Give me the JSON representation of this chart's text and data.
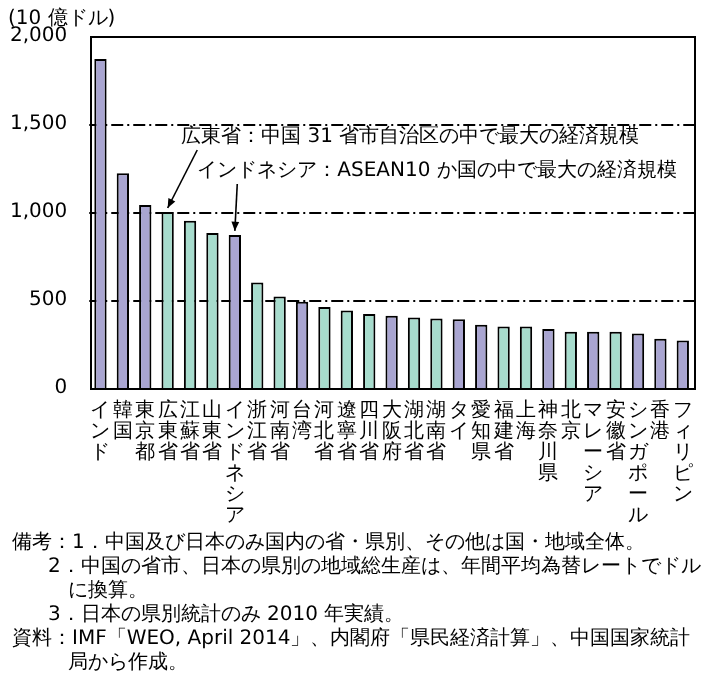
{
  "chart_data": {
    "type": "bar",
    "ylabel": "(10 億ドル)",
    "categories": [
      "インド",
      "韓国",
      "東京都",
      "広東省",
      "江蘇省",
      "山東省",
      "インドネシア",
      "浙江省",
      "河南省",
      "台湾",
      "河北省",
      "遼寧省",
      "四川省",
      "大阪府",
      "湖北省",
      "湖南省",
      "タイ",
      "愛知県",
      "福建省",
      "上海",
      "神奈川県",
      "北京",
      "マレーシア",
      "安徽省",
      "シンガポール",
      "香港",
      "フィリピン"
    ],
    "values": [
      1870,
      1220,
      1040,
      1000,
      950,
      880,
      870,
      600,
      520,
      490,
      460,
      440,
      420,
      410,
      400,
      395,
      390,
      360,
      350,
      350,
      335,
      320,
      320,
      320,
      310,
      280,
      270
    ],
    "colors": [
      "#a9a5d1",
      "#a9a5d1",
      "#a9a5d1",
      "#a7dccd",
      "#a7dccd",
      "#a7dccd",
      "#a9a5d1",
      "#a7dccd",
      "#a7dccd",
      "#a9a5d1",
      "#a7dccd",
      "#a7dccd",
      "#a7dccd",
      "#a9a5d1",
      "#a7dccd",
      "#a7dccd",
      "#a9a5d1",
      "#a9a5d1",
      "#a7dccd",
      "#a7dccd",
      "#a9a5d1",
      "#a7dccd",
      "#a9a5d1",
      "#a7dccd",
      "#a9a5d1",
      "#a9a5d1",
      "#a9a5d1"
    ],
    "ylim": [
      0,
      2000
    ],
    "yticks": [
      0,
      500,
      {
        "value": 1000,
        "label": "1,000"
      },
      {
        "value": 1500,
        "label": "1,500"
      },
      {
        "value": 2000,
        "label": "2,000"
      }
    ],
    "grid": "y",
    "annotations": [
      {
        "text": "広東省：中国 31 省市自治区の中で最大の経済規模",
        "x": "広東省",
        "y": 1000
      },
      {
        "text": "インドネシア：ASEAN10 か国の中で最大の経済規模",
        "x": "インドネシア",
        "y": 870
      },
      "備考：1．中国及び日本のみ国内の省・県別、その他は国・地域全体。",
      "2．中国の省市、日本の県別の地域総生産は、年間平均為替レートでドルに換算。",
      "3．日本の県別統計のみ 2010 年実績。",
      "資料：IMF「WEO, April 2014」、内閣府「県民経済計算」、中国国家統計局から作成。"
    ]
  }
}
